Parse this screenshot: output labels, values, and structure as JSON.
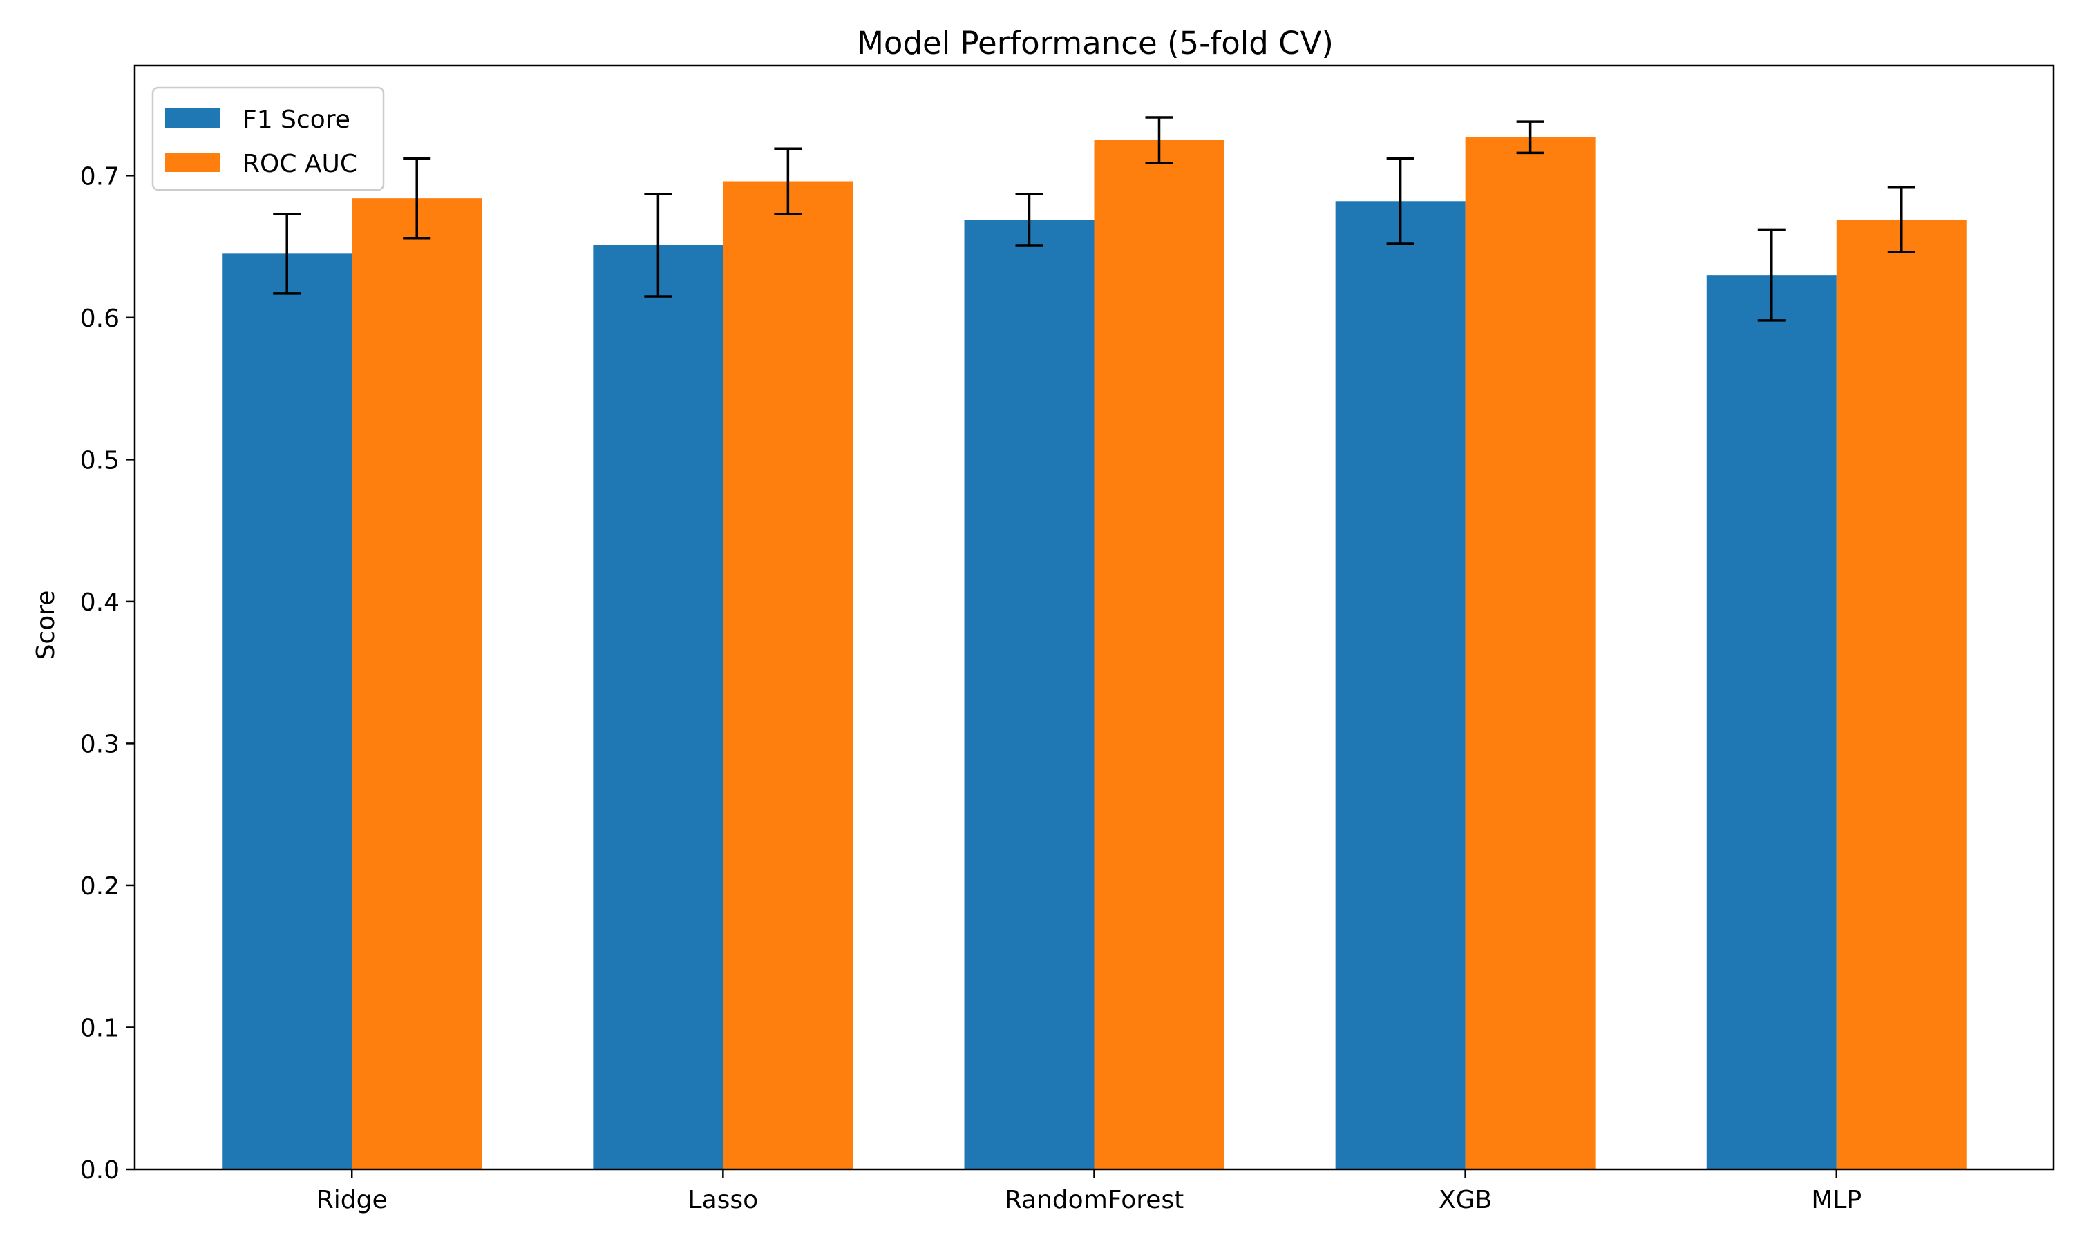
{
  "chart_data": {
    "type": "bar",
    "title": "Model Performance (5-fold CV)",
    "xlabel": "",
    "ylabel": "Score",
    "categories": [
      "Ridge",
      "Lasso",
      "RandomForest",
      "XGB",
      "MLP"
    ],
    "series": [
      {
        "name": "F1 Score",
        "color": "#1f77b4",
        "values": [
          0.645,
          0.651,
          0.669,
          0.682,
          0.63
        ],
        "errors": [
          0.028,
          0.036,
          0.018,
          0.03,
          0.032
        ]
      },
      {
        "name": "ROC AUC",
        "color": "#ff7f0e",
        "values": [
          0.684,
          0.696,
          0.725,
          0.727,
          0.669
        ],
        "errors": [
          0.028,
          0.023,
          0.016,
          0.011,
          0.023
        ]
      }
    ],
    "ylim": [
      0,
      0.7775
    ],
    "yticks": [
      0.0,
      0.1,
      0.2,
      0.3,
      0.4,
      0.5,
      0.6,
      0.7
    ],
    "ytick_labels": [
      "0.0",
      "0.1",
      "0.2",
      "0.3",
      "0.4",
      "0.5",
      "0.6",
      "0.7"
    ],
    "grid": false,
    "legend": {
      "placement": "top-left",
      "entries": [
        "F1 Score",
        "ROC AUC"
      ]
    }
  }
}
